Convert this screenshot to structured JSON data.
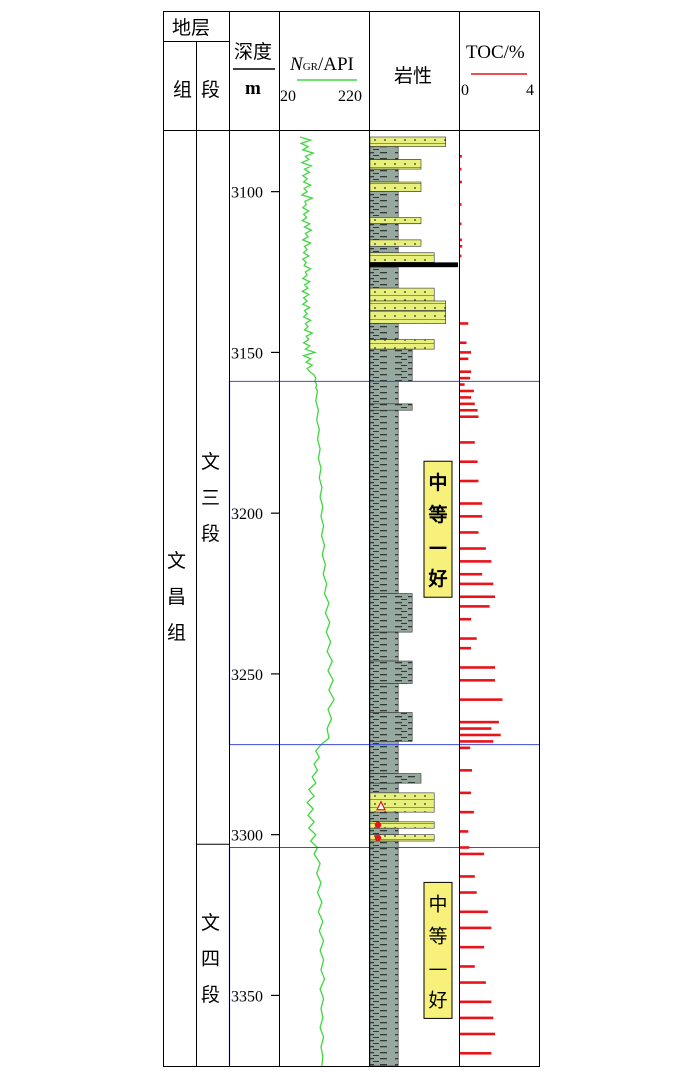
{
  "header": {
    "strata": "地层",
    "formation": "组",
    "member": "段",
    "depth_label": "深度",
    "depth_unit": "m",
    "gr_label_main": "N",
    "gr_label_sub": "GR",
    "gr_label_rest": "/API",
    "gr_min": "20",
    "gr_max": "220",
    "lithology": "岩性",
    "toc_label": "TOC/%",
    "toc_min": "0",
    "toc_max": "4"
  },
  "formation_name": [
    "文",
    "昌",
    "组"
  ],
  "members": [
    {
      "chars": [
        "文",
        "三",
        "段"
      ],
      "top": 3083,
      "bottom": 3303
    },
    {
      "chars": [
        "文",
        "四",
        "段"
      ],
      "top": 3303,
      "bottom": 3372
    }
  ],
  "depth_ticks": [
    "3100",
    "3150",
    "3200",
    "3250",
    "3300",
    "3350"
  ],
  "zone_boundaries": [
    3159,
    3272,
    3304
  ],
  "evaluation_labels": [
    {
      "chars": [
        "中",
        "等",
        "—",
        "好"
      ],
      "center_depth": 3205,
      "style": "bold"
    },
    {
      "chars": [
        "中",
        "等",
        "—",
        "好"
      ],
      "center_depth": 3336,
      "style": "light"
    }
  ],
  "colors": {
    "gr_curve": "#3fd83f",
    "toc_bar": "#e8141a",
    "sandstone": "#e6f07a",
    "mudstone": "#97a99f",
    "coal": "#000000",
    "zone_line": "#3b4bd8",
    "label_box": "#f7f07a"
  },
  "chart_data": {
    "type": "well-log",
    "depth_range": [
      3083,
      3372
    ],
    "depth_ticks": [
      3100,
      3150,
      3200,
      3250,
      3300,
      3350
    ],
    "gr": {
      "xlim": [
        20,
        220
      ],
      "points": [
        [
          3083,
          64
        ],
        [
          3084,
          88
        ],
        [
          3085,
          66
        ],
        [
          3086,
          82
        ],
        [
          3087,
          70
        ],
        [
          3088,
          94
        ],
        [
          3089,
          76
        ],
        [
          3090,
          84
        ],
        [
          3091,
          68
        ],
        [
          3092,
          90
        ],
        [
          3093,
          74
        ],
        [
          3094,
          85
        ],
        [
          3095,
          70
        ],
        [
          3096,
          80
        ],
        [
          3097,
          72
        ],
        [
          3098,
          88
        ],
        [
          3099,
          73
        ],
        [
          3100,
          80
        ],
        [
          3101,
          68
        ],
        [
          3102,
          92
        ],
        [
          3103,
          75
        ],
        [
          3104,
          78
        ],
        [
          3105,
          70
        ],
        [
          3106,
          84
        ],
        [
          3107,
          72
        ],
        [
          3108,
          79
        ],
        [
          3109,
          69
        ],
        [
          3110,
          86
        ],
        [
          3111,
          74
        ],
        [
          3112,
          90
        ],
        [
          3113,
          76
        ],
        [
          3114,
          82
        ],
        [
          3115,
          70
        ],
        [
          3116,
          88
        ],
        [
          3117,
          74
        ],
        [
          3118,
          80
        ],
        [
          3119,
          72
        ],
        [
          3120,
          84
        ],
        [
          3121,
          70
        ],
        [
          3122,
          78
        ],
        [
          3123,
          73
        ],
        [
          3124,
          88
        ],
        [
          3125,
          76
        ],
        [
          3126,
          80
        ],
        [
          3127,
          70
        ],
        [
          3128,
          86
        ],
        [
          3129,
          74
        ],
        [
          3130,
          82
        ],
        [
          3131,
          69
        ],
        [
          3132,
          84
        ],
        [
          3133,
          72
        ],
        [
          3134,
          80
        ],
        [
          3135,
          70
        ],
        [
          3136,
          86
        ],
        [
          3137,
          74
        ],
        [
          3138,
          80
        ],
        [
          3139,
          72
        ],
        [
          3140,
          88
        ],
        [
          3141,
          76
        ],
        [
          3142,
          82
        ],
        [
          3143,
          74
        ],
        [
          3144,
          92
        ],
        [
          3145,
          78
        ],
        [
          3146,
          84
        ],
        [
          3147,
          72
        ],
        [
          3148,
          86
        ],
        [
          3149,
          76
        ],
        [
          3150,
          98
        ],
        [
          3151,
          72
        ],
        [
          3152,
          88
        ],
        [
          3153,
          78
        ],
        [
          3154,
          92
        ],
        [
          3155,
          80
        ],
        [
          3156,
          86
        ],
        [
          3157,
          96
        ],
        [
          3158,
          100
        ],
        [
          3159,
          98
        ],
        [
          3160,
          102
        ],
        [
          3161,
          100
        ],
        [
          3162,
          104
        ],
        [
          3165,
          100
        ],
        [
          3168,
          106
        ],
        [
          3171,
          102
        ],
        [
          3174,
          108
        ],
        [
          3177,
          104
        ],
        [
          3180,
          110
        ],
        [
          3183,
          106
        ],
        [
          3186,
          112
        ],
        [
          3189,
          108
        ],
        [
          3192,
          114
        ],
        [
          3195,
          110
        ],
        [
          3198,
          116
        ],
        [
          3201,
          112
        ],
        [
          3204,
          118
        ],
        [
          3207,
          113
        ],
        [
          3210,
          120
        ],
        [
          3213,
          115
        ],
        [
          3216,
          122
        ],
        [
          3219,
          117
        ],
        [
          3222,
          125
        ],
        [
          3225,
          120
        ],
        [
          3228,
          130
        ],
        [
          3231,
          122
        ],
        [
          3234,
          132
        ],
        [
          3237,
          124
        ],
        [
          3240,
          134
        ],
        [
          3243,
          126
        ],
        [
          3246,
          138
        ],
        [
          3249,
          128
        ],
        [
          3252,
          140
        ],
        [
          3255,
          130
        ],
        [
          3258,
          142
        ],
        [
          3261,
          128
        ],
        [
          3264,
          136
        ],
        [
          3267,
          126
        ],
        [
          3270,
          130
        ],
        [
          3272,
          112
        ],
        [
          3274,
          100
        ],
        [
          3276,
          108
        ],
        [
          3278,
          96
        ],
        [
          3280,
          104
        ],
        [
          3282,
          92
        ],
        [
          3284,
          100
        ],
        [
          3286,
          84
        ],
        [
          3288,
          96
        ],
        [
          3290,
          80
        ],
        [
          3292,
          94
        ],
        [
          3294,
          82
        ],
        [
          3296,
          96
        ],
        [
          3298,
          84
        ],
        [
          3300,
          100
        ],
        [
          3302,
          88
        ],
        [
          3304,
          104
        ],
        [
          3306,
          96
        ],
        [
          3309,
          110
        ],
        [
          3312,
          102
        ],
        [
          3315,
          112
        ],
        [
          3318,
          104
        ],
        [
          3321,
          114
        ],
        [
          3324,
          106
        ],
        [
          3327,
          116
        ],
        [
          3330,
          108
        ],
        [
          3333,
          118
        ],
        [
          3336,
          110
        ],
        [
          3339,
          118
        ],
        [
          3342,
          112
        ],
        [
          3345,
          120
        ],
        [
          3348,
          110
        ],
        [
          3351,
          118
        ],
        [
          3354,
          112
        ],
        [
          3357,
          116
        ],
        [
          3360,
          110
        ],
        [
          3363,
          118
        ],
        [
          3366,
          112
        ],
        [
          3369,
          116
        ],
        [
          3372,
          114
        ]
      ]
    },
    "lithology": {
      "intervals": [
        {
          "top": 3083,
          "bottom": 3086,
          "type": "sandstone",
          "width": 0.86
        },
        {
          "top": 3086,
          "bottom": 3090,
          "type": "mudstone",
          "width": 0.32
        },
        {
          "top": 3090,
          "bottom": 3093,
          "type": "sandstone",
          "width": 0.58
        },
        {
          "top": 3093,
          "bottom": 3097,
          "type": "mudstone",
          "width": 0.32
        },
        {
          "top": 3097,
          "bottom": 3100,
          "type": "sandstone",
          "width": 0.58
        },
        {
          "top": 3100,
          "bottom": 3108,
          "type": "mudstone",
          "width": 0.32
        },
        {
          "top": 3108,
          "bottom": 3110,
          "type": "sandstone",
          "width": 0.58
        },
        {
          "top": 3110,
          "bottom": 3115,
          "type": "mudstone",
          "width": 0.32
        },
        {
          "top": 3115,
          "bottom": 3117,
          "type": "sandstone",
          "width": 0.58
        },
        {
          "top": 3117,
          "bottom": 3119,
          "type": "mudstone",
          "width": 0.32
        },
        {
          "top": 3119,
          "bottom": 3122,
          "type": "sandstone",
          "width": 0.73
        },
        {
          "top": 3122,
          "bottom": 3123.5,
          "type": "coal",
          "width": 1.0
        },
        {
          "top": 3123.5,
          "bottom": 3130,
          "type": "mudstone",
          "width": 0.32
        },
        {
          "top": 3130,
          "bottom": 3134,
          "type": "sandstone",
          "width": 0.73
        },
        {
          "top": 3134,
          "bottom": 3137,
          "type": "sandstone",
          "width": 0.86
        },
        {
          "top": 3137,
          "bottom": 3141,
          "type": "sandstone",
          "width": 0.86
        },
        {
          "top": 3141,
          "bottom": 3146,
          "type": "mudstone",
          "width": 0.32
        },
        {
          "top": 3146,
          "bottom": 3149,
          "type": "sandstone",
          "width": 0.73
        },
        {
          "top": 3149,
          "bottom": 3159,
          "type": "mudstone",
          "width": 0.48
        },
        {
          "top": 3159,
          "bottom": 3166,
          "type": "mudstone",
          "width": 0.32
        },
        {
          "top": 3166,
          "bottom": 3168,
          "type": "mudstone",
          "width": 0.48
        },
        {
          "top": 3168,
          "bottom": 3225,
          "type": "mudstone",
          "width": 0.32
        },
        {
          "top": 3225,
          "bottom": 3237,
          "type": "mudstone",
          "width": 0.48
        },
        {
          "top": 3237,
          "bottom": 3246,
          "type": "mudstone",
          "width": 0.32
        },
        {
          "top": 3246,
          "bottom": 3253,
          "type": "mudstone",
          "width": 0.48
        },
        {
          "top": 3253,
          "bottom": 3262,
          "type": "mudstone",
          "width": 0.32
        },
        {
          "top": 3262,
          "bottom": 3271,
          "type": "mudstone",
          "width": 0.48
        },
        {
          "top": 3271,
          "bottom": 3281,
          "type": "mudstone",
          "width": 0.32
        },
        {
          "top": 3281,
          "bottom": 3284,
          "type": "mudstone",
          "width": 0.58
        },
        {
          "top": 3284,
          "bottom": 3287,
          "type": "mudstone",
          "width": 0.32
        },
        {
          "top": 3287,
          "bottom": 3293,
          "type": "sandstone",
          "width": 0.73
        },
        {
          "top": 3293,
          "bottom": 3296,
          "type": "mudstone",
          "width": 0.32
        },
        {
          "top": 3296,
          "bottom": 3298,
          "type": "sandstone",
          "width": 0.73
        },
        {
          "top": 3298,
          "bottom": 3300,
          "type": "mudstone",
          "width": 0.32
        },
        {
          "top": 3300,
          "bottom": 3302,
          "type": "sandstone",
          "width": 0.73
        },
        {
          "top": 3302,
          "bottom": 3372,
          "type": "mudstone",
          "width": 0.32
        }
      ],
      "markers": [
        {
          "depth": 3291,
          "symbol": "triangle"
        },
        {
          "depth": 3297,
          "symbol": "dot"
        },
        {
          "depth": 3301,
          "symbol": "dot"
        }
      ]
    },
    "toc": {
      "xlim": [
        0,
        4
      ],
      "values": [
        [
          3089,
          0.1
        ],
        [
          3093,
          0.05
        ],
        [
          3097,
          0.1
        ],
        [
          3104,
          0.06
        ],
        [
          3110,
          0.06
        ],
        [
          3115,
          0.1
        ],
        [
          3117,
          0.12
        ],
        [
          3120,
          0.06
        ],
        [
          3141,
          0.45
        ],
        [
          3147,
          0.35
        ],
        [
          3150,
          0.6
        ],
        [
          3152,
          0.45
        ],
        [
          3156,
          0.6
        ],
        [
          3158,
          0.55
        ],
        [
          3160,
          0.25
        ],
        [
          3162,
          0.75
        ],
        [
          3164,
          0.6
        ],
        [
          3166,
          0.8
        ],
        [
          3168,
          0.95
        ],
        [
          3170,
          1.0
        ],
        [
          3178,
          0.8
        ],
        [
          3184,
          0.95
        ],
        [
          3190,
          1.0
        ],
        [
          3197,
          1.2
        ],
        [
          3201,
          1.2
        ],
        [
          3206,
          1.0
        ],
        [
          3211,
          1.4
        ],
        [
          3215,
          1.7
        ],
        [
          3219,
          1.2
        ],
        [
          3222,
          1.8
        ],
        [
          3226,
          1.9
        ],
        [
          3229,
          1.6
        ],
        [
          3233,
          0.6
        ],
        [
          3239,
          0.9
        ],
        [
          3242,
          0.6
        ],
        [
          3248,
          1.9
        ],
        [
          3252,
          1.9
        ],
        [
          3258,
          2.3
        ],
        [
          3265,
          2.1
        ],
        [
          3267,
          1.7
        ],
        [
          3269,
          2.2
        ],
        [
          3271,
          1.8
        ],
        [
          3273,
          0.55
        ],
        [
          3280,
          0.65
        ],
        [
          3287,
          0.6
        ],
        [
          3293,
          0.75
        ],
        [
          3299,
          0.45
        ],
        [
          3304,
          0.5
        ],
        [
          3306,
          1.3
        ],
        [
          3313,
          0.8
        ],
        [
          3318,
          0.9
        ],
        [
          3324,
          1.5
        ],
        [
          3329,
          1.7
        ],
        [
          3335,
          1.3
        ],
        [
          3341,
          0.8
        ],
        [
          3346,
          1.4
        ],
        [
          3352,
          1.7
        ],
        [
          3357,
          1.8
        ],
        [
          3362,
          1.9
        ],
        [
          3368,
          1.7
        ]
      ]
    }
  }
}
